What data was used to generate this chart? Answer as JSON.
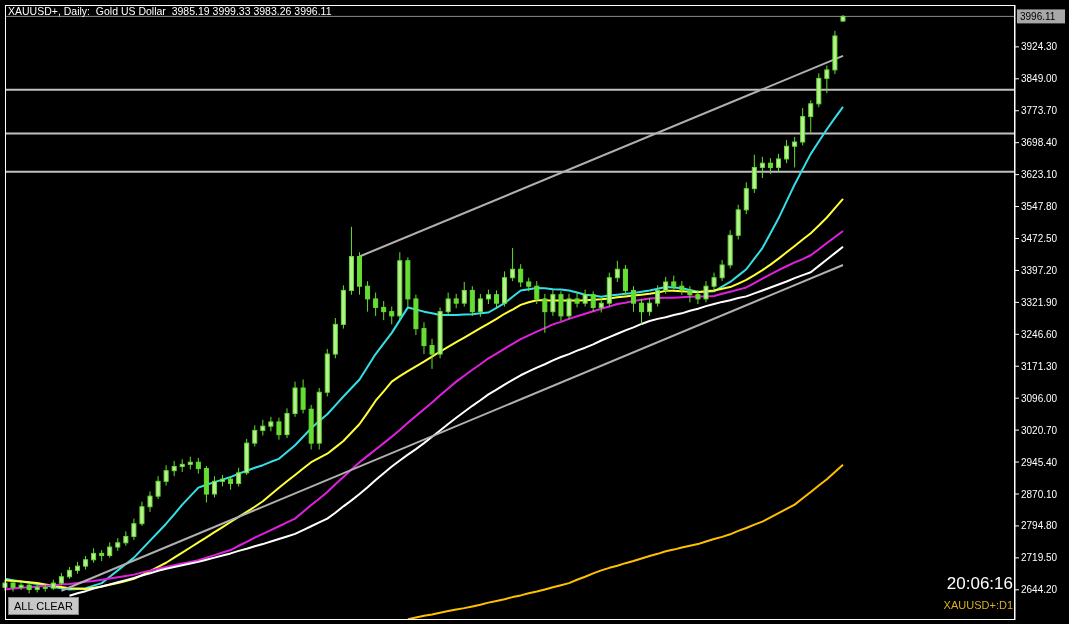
{
  "chart_data": {
    "type": "candlestick",
    "title": "XAUUSD+, Daily:  Gold US Dollar  3985.19 3999.33 3983.26 3996.11",
    "annotations": [
      "20:06:16",
      "XAUUSD+:D1",
      "ALL CLEAR"
    ],
    "color": "#66dd33",
    "categories": [
      null,
      null,
      null,
      null,
      null,
      null,
      null,
      null,
      null,
      null,
      null,
      null,
      null,
      null,
      null,
      null,
      null,
      null,
      null,
      null,
      null,
      null,
      null,
      null,
      null,
      null,
      null,
      null,
      null,
      null,
      null,
      null,
      null,
      null,
      null,
      null,
      null,
      null,
      null,
      null,
      null,
      null,
      null,
      null,
      null,
      null,
      null,
      null,
      null,
      null,
      null,
      null,
      null,
      null,
      null,
      null,
      null,
      null,
      null,
      null,
      null,
      null,
      null,
      null,
      null,
      null,
      null,
      null,
      null,
      null,
      null,
      null,
      null,
      null,
      null,
      null,
      null,
      null,
      null,
      null,
      null,
      null,
      null,
      null,
      null,
      null,
      null,
      null,
      null,
      null,
      null,
      null,
      null,
      null,
      null,
      null,
      null,
      null,
      null,
      null,
      null,
      null,
      null,
      null,
      null
    ],
    "ohlc": [
      [
        2650,
        2668,
        2642,
        2660
      ],
      [
        2660,
        2665,
        2640,
        2650
      ],
      [
        2650,
        2662,
        2644,
        2655
      ],
      [
        2655,
        2660,
        2636,
        2645
      ],
      [
        2645,
        2658,
        2638,
        2650
      ],
      [
        2650,
        2656,
        2640,
        2648
      ],
      [
        2648,
        2668,
        2644,
        2660
      ],
      [
        2660,
        2684,
        2655,
        2675
      ],
      [
        2675,
        2698,
        2670,
        2690
      ],
      [
        2690,
        2710,
        2682,
        2700
      ],
      [
        2700,
        2724,
        2692,
        2715
      ],
      [
        2715,
        2742,
        2708,
        2730
      ],
      [
        2730,
        2738,
        2712,
        2725
      ],
      [
        2725,
        2756,
        2720,
        2745
      ],
      [
        2745,
        2766,
        2736,
        2755
      ],
      [
        2755,
        2782,
        2748,
        2770
      ],
      [
        2770,
        2812,
        2762,
        2800
      ],
      [
        2800,
        2852,
        2795,
        2840
      ],
      [
        2840,
        2876,
        2828,
        2865
      ],
      [
        2865,
        2912,
        2858,
        2900
      ],
      [
        2900,
        2938,
        2890,
        2925
      ],
      [
        2925,
        2948,
        2912,
        2935
      ],
      [
        2935,
        2952,
        2922,
        2940
      ],
      [
        2940,
        2958,
        2928,
        2945
      ],
      [
        2945,
        2955,
        2918,
        2930
      ],
      [
        2930,
        2936,
        2850,
        2870
      ],
      [
        2870,
        2912,
        2862,
        2900
      ],
      [
        2900,
        2915,
        2888,
        2905
      ],
      [
        2905,
        2912,
        2880,
        2895
      ],
      [
        2895,
        2932,
        2888,
        2920
      ],
      [
        2920,
        3000,
        2915,
        2990
      ],
      [
        2990,
        3032,
        2982,
        3020
      ],
      [
        3020,
        3045,
        3008,
        3030
      ],
      [
        3030,
        3052,
        3018,
        3040
      ],
      [
        3040,
        3050,
        2998,
        3010
      ],
      [
        3010,
        3072,
        3002,
        3060
      ],
      [
        3060,
        3135,
        3052,
        3120
      ],
      [
        3120,
        3140,
        3060,
        3070
      ],
      [
        3070,
        3080,
        2975,
        2990
      ],
      [
        2990,
        3120,
        2975,
        3110
      ],
      [
        3110,
        3212,
        3100,
        3200
      ],
      [
        3200,
        3285,
        3190,
        3270
      ],
      [
        3270,
        3362,
        3260,
        3350
      ],
      [
        3350,
        3500,
        3340,
        3430
      ],
      [
        3430,
        3440,
        3340,
        3360
      ],
      [
        3360,
        3372,
        3300,
        3330
      ],
      [
        3330,
        3345,
        3290,
        3310
      ],
      [
        3310,
        3325,
        3280,
        3300
      ],
      [
        3300,
        3312,
        3270,
        3290
      ],
      [
        3290,
        3440,
        3282,
        3420
      ],
      [
        3420,
        3428,
        3310,
        3330
      ],
      [
        3330,
        3340,
        3245,
        3260
      ],
      [
        3260,
        3275,
        3200,
        3220
      ],
      [
        3220,
        3236,
        3165,
        3200
      ],
      [
        3200,
        3310,
        3190,
        3300
      ],
      [
        3300,
        3345,
        3292,
        3330
      ],
      [
        3330,
        3342,
        3308,
        3320
      ],
      [
        3320,
        3370,
        3312,
        3350
      ],
      [
        3350,
        3360,
        3290,
        3300
      ],
      [
        3300,
        3342,
        3288,
        3330
      ],
      [
        3330,
        3352,
        3318,
        3340
      ],
      [
        3340,
        3350,
        3308,
        3320
      ],
      [
        3320,
        3395,
        3312,
        3380
      ],
      [
        3380,
        3450,
        3372,
        3400
      ],
      [
        3400,
        3412,
        3358,
        3370
      ],
      [
        3370,
        3380,
        3348,
        3360
      ],
      [
        3360,
        3372,
        3318,
        3330
      ],
      [
        3330,
        3342,
        3250,
        3300
      ],
      [
        3300,
        3352,
        3290,
        3340
      ],
      [
        3340,
        3348,
        3278,
        3290
      ],
      [
        3290,
        3342,
        3282,
        3330
      ],
      [
        3330,
        3345,
        3310,
        3320
      ],
      [
        3320,
        3352,
        3312,
        3340
      ],
      [
        3340,
        3348,
        3300,
        3310
      ],
      [
        3310,
        3332,
        3298,
        3320
      ],
      [
        3320,
        3392,
        3312,
        3380
      ],
      [
        3380,
        3420,
        3370,
        3400
      ],
      [
        3400,
        3410,
        3340,
        3350
      ],
      [
        3350,
        3360,
        3300,
        3320
      ],
      [
        3320,
        3330,
        3270,
        3300
      ],
      [
        3300,
        3332,
        3290,
        3320
      ],
      [
        3320,
        3362,
        3312,
        3350
      ],
      [
        3350,
        3382,
        3342,
        3370
      ],
      [
        3370,
        3385,
        3352,
        3360
      ],
      [
        3360,
        3372,
        3340,
        3350
      ],
      [
        3350,
        3360,
        3322,
        3340
      ],
      [
        3340,
        3350,
        3318,
        3330
      ],
      [
        3330,
        3372,
        3322,
        3360
      ],
      [
        3360,
        3392,
        3350,
        3380
      ],
      [
        3380,
        3422,
        3372,
        3410
      ],
      [
        3410,
        3492,
        3402,
        3480
      ],
      [
        3480,
        3552,
        3470,
        3540
      ],
      [
        3540,
        3605,
        3530,
        3590
      ],
      [
        3590,
        3670,
        3580,
        3640
      ],
      [
        3640,
        3665,
        3615,
        3650
      ],
      [
        3650,
        3662,
        3625,
        3640
      ],
      [
        3640,
        3672,
        3630,
        3660
      ],
      [
        3660,
        3705,
        3650,
        3690
      ],
      [
        3690,
        3712,
        3640,
        3700
      ],
      [
        3700,
        3780,
        3692,
        3760
      ],
      [
        3760,
        3798,
        3718,
        3790
      ],
      [
        3790,
        3862,
        3782,
        3850
      ],
      [
        3850,
        3880,
        3815,
        3870
      ],
      [
        3870,
        3962,
        3860,
        3950
      ],
      [
        3985.19,
        3999.33,
        3983.26,
        3996.11
      ]
    ],
    "series": [
      {
        "type": "line",
        "color": "#33e0e8",
        "values": [
          2670,
          2667,
          2664,
          2661,
          2658,
          2655,
          2651,
          2648,
          2645,
          2646,
          2648,
          2654,
          2660,
          2675,
          2690,
          2705,
          2720,
          2740,
          2760,
          2780,
          2800,
          2822,
          2845,
          2865,
          2885,
          2892,
          2898,
          2904,
          2910,
          2918,
          2925,
          2932,
          2938,
          2946,
          2953,
          2969,
          2985,
          3005,
          3025,
          3042,
          3058,
          3079,
          3100,
          3120,
          3140,
          3170,
          3200,
          3225,
          3250,
          3280,
          3310,
          3305,
          3300,
          3296,
          3292,
          3292,
          3292,
          3293,
          3294,
          3296,
          3298,
          3309,
          3320,
          3335,
          3350,
          3353,
          3356,
          3355,
          3353,
          3352,
          3350,
          3345,
          3340,
          3338,
          3335,
          3338,
          3340,
          3342,
          3344,
          3347,
          3350,
          3354,
          3358,
          3357,
          3355,
          3351,
          3347,
          3347,
          3348,
          3359,
          3370,
          3385,
          3400,
          3425,
          3450,
          3485,
          3520,
          3560,
          3600,
          3636,
          3672,
          3701,
          3730,
          3757,
          3783
        ]
      },
      {
        "type": "line",
        "color": "#ffff33",
        "values": [
          2667,
          2665,
          2664,
          2662,
          2660,
          2657,
          2654,
          2651,
          2648,
          2647,
          2646,
          2649,
          2652,
          2656,
          2660,
          2665,
          2670,
          2679,
          2688,
          2698,
          2708,
          2720,
          2732,
          2744,
          2756,
          2768,
          2780,
          2792,
          2804,
          2816,
          2828,
          2840,
          2853,
          2869,
          2885,
          2900,
          2915,
          2930,
          2945,
          2955,
          2965,
          2980,
          2995,
          3015,
          3035,
          3062,
          3090,
          3112,
          3135,
          3148,
          3160,
          3171,
          3182,
          3194,
          3206,
          3217,
          3228,
          3239,
          3250,
          3261,
          3272,
          3283,
          3295,
          3305,
          3316,
          3322,
          3327,
          3327,
          3326,
          3326,
          3326,
          3326,
          3327,
          3328,
          3329,
          3331,
          3334,
          3336,
          3338,
          3340,
          3342,
          3345,
          3349,
          3349,
          3348,
          3347,
          3346,
          3348,
          3350,
          3354,
          3358,
          3366,
          3375,
          3386,
          3398,
          3411,
          3425,
          3440,
          3455,
          3470,
          3485,
          3503,
          3522,
          3544,
          3566
        ]
      },
      {
        "type": "line",
        "color": "#e020e0",
        "values": [
          2645,
          2647,
          2649,
          2650,
          2652,
          2654,
          2655,
          2657,
          2658,
          2660,
          2663,
          2665,
          2668,
          2671,
          2674,
          2677,
          2680,
          2685,
          2689,
          2694,
          2698,
          2702,
          2706,
          2710,
          2714,
          2720,
          2726,
          2732,
          2738,
          2748,
          2757,
          2767,
          2776,
          2785,
          2794,
          2803,
          2812,
          2828,
          2844,
          2859,
          2875,
          2893,
          2910,
          2928,
          2945,
          2960,
          2975,
          2990,
          3005,
          3021,
          3038,
          3054,
          3070,
          3086,
          3103,
          3119,
          3135,
          3149,
          3163,
          3176,
          3190,
          3201,
          3213,
          3224,
          3235,
          3244,
          3253,
          3261,
          3270,
          3276,
          3283,
          3289,
          3295,
          3301,
          3307,
          3312,
          3318,
          3321,
          3325,
          3328,
          3331,
          3332,
          3333,
          3333,
          3334,
          3335,
          3336,
          3336,
          3337,
          3342,
          3347,
          3352,
          3357,
          3367,
          3378,
          3388,
          3398,
          3407,
          3416,
          3424,
          3433,
          3447,
          3462,
          3476,
          3490
        ]
      },
      {
        "type": "line",
        "color": "#ffffff",
        "values": [
          null,
          null,
          null,
          null,
          null,
          null,
          null,
          null,
          2630,
          2636,
          2641,
          2647,
          2652,
          2657,
          2662,
          2667,
          2672,
          2678,
          2683,
          2689,
          2694,
          2698,
          2702,
          2706,
          2710,
          2715,
          2720,
          2725,
          2730,
          2736,
          2741,
          2747,
          2752,
          2758,
          2764,
          2770,
          2776,
          2785,
          2794,
          2803,
          2812,
          2826,
          2841,
          2855,
          2870,
          2886,
          2903,
          2919,
          2935,
          2949,
          2963,
          2976,
          2990,
          3005,
          3020,
          3035,
          3050,
          3064,
          3078,
          3091,
          3105,
          3116,
          3128,
          3139,
          3150,
          3159,
          3168,
          3176,
          3185,
          3193,
          3200,
          3208,
          3215,
          3223,
          3232,
          3240,
          3248,
          3256,
          3263,
          3271,
          3278,
          3283,
          3287,
          3292,
          3296,
          3302,
          3307,
          3313,
          3318,
          3323,
          3327,
          3332,
          3336,
          3343,
          3350,
          3357,
          3364,
          3371,
          3379,
          3386,
          3393,
          3408,
          3423,
          3438,
          3453
        ]
      },
      {
        "type": "line",
        "color": "#ffc000",
        "values": [
          null,
          null,
          null,
          null,
          null,
          null,
          null,
          null,
          null,
          null,
          null,
          null,
          null,
          null,
          null,
          null,
          null,
          null,
          null,
          null,
          null,
          null,
          null,
          null,
          null,
          null,
          null,
          null,
          null,
          null,
          null,
          null,
          null,
          null,
          null,
          null,
          null,
          null,
          null,
          null,
          null,
          null,
          null,
          null,
          null,
          null,
          null,
          null,
          null,
          null,
          2575,
          2579,
          2583,
          2586,
          2590,
          2594,
          2598,
          2601,
          2605,
          2609,
          2614,
          2618,
          2622,
          2627,
          2631,
          2636,
          2640,
          2645,
          2650,
          2655,
          2660,
          2668,
          2675,
          2683,
          2690,
          2696,
          2701,
          2707,
          2712,
          2718,
          2724,
          2729,
          2735,
          2739,
          2744,
          2748,
          2752,
          2758,
          2764,
          2769,
          2775,
          2783,
          2790,
          2798,
          2805,
          2815,
          2825,
          2835,
          2845,
          2860,
          2875,
          2890,
          2905,
          2922,
          2939
        ]
      },
      {
        "type": "line",
        "color": "#b0b0b0",
        "values": [
          null,
          null,
          null,
          null,
          null,
          null,
          null,
          null,
          null,
          null,
          null,
          null,
          null,
          null,
          null,
          null,
          null,
          null,
          null,
          null,
          null,
          null,
          null,
          null,
          null,
          null,
          null,
          null,
          null,
          null,
          null,
          null,
          null,
          null,
          null,
          null,
          null,
          null,
          null,
          null,
          null,
          null,
          null,
          null,
          3430,
          null,
          null,
          null,
          null,
          null,
          null,
          null,
          null,
          null,
          null,
          null,
          null,
          null,
          null,
          null,
          null,
          null,
          null,
          null,
          null,
          null,
          null,
          null,
          null,
          null,
          null,
          null,
          null,
          null,
          null,
          null,
          null,
          null,
          null,
          null,
          null,
          null,
          null,
          null,
          null,
          null,
          null,
          null,
          null,
          null,
          null,
          null,
          null,
          null,
          null,
          null,
          null,
          null,
          null,
          null,
          null,
          null,
          null,
          null,
          3903
        ]
      },
      {
        "type": "line",
        "color": "#b0b0b0",
        "values": [
          null,
          null,
          null,
          null,
          null,
          null,
          null,
          2642,
          null,
          null,
          null,
          null,
          null,
          null,
          null,
          null,
          null,
          null,
          null,
          null,
          null,
          null,
          null,
          null,
          null,
          null,
          null,
          null,
          null,
          null,
          null,
          null,
          null,
          null,
          null,
          null,
          null,
          null,
          null,
          null,
          null,
          null,
          null,
          null,
          null,
          null,
          null,
          null,
          null,
          null,
          null,
          null,
          null,
          null,
          null,
          null,
          null,
          null,
          null,
          null,
          null,
          null,
          null,
          null,
          null,
          null,
          null,
          null,
          null,
          null,
          null,
          null,
          null,
          null,
          null,
          null,
          null,
          null,
          null,
          null,
          null,
          null,
          null,
          null,
          null,
          null,
          null,
          null,
          null,
          null,
          null,
          null,
          null,
          null,
          null,
          null,
          null,
          null,
          null,
          null,
          null,
          null,
          null,
          null,
          3410
        ]
      }
    ],
    "ylim": [
      2573,
      4023
    ],
    "yticks": [
      {
        "value": 2644.2,
        "label": "2644.20"
      },
      {
        "value": 2719.5,
        "label": "2719.50"
      },
      {
        "value": 2794.8,
        "label": "2794.80"
      },
      {
        "value": 2870.1,
        "label": "2870.10"
      },
      {
        "value": 2945.4,
        "label": "2945.40"
      },
      {
        "value": 3020.7,
        "label": "3020.70"
      },
      {
        "value": 3096,
        "label": "3096.00"
      },
      {
        "value": 3171.3,
        "label": "3171.30"
      },
      {
        "value": 3246.6,
        "label": "3246.60"
      },
      {
        "value": 3321.9,
        "label": "3321.90"
      },
      {
        "value": 3397.2,
        "label": "3397.20"
      },
      {
        "value": 3472.5,
        "label": "3472.50"
      },
      {
        "value": 3547.8,
        "label": "3547.80"
      },
      {
        "value": 3623.1,
        "label": "3623.10"
      },
      {
        "value": 3698.4,
        "label": "3698.40"
      },
      {
        "value": 3773.7,
        "label": "3773.70"
      },
      {
        "value": 3849,
        "label": "3849.00"
      },
      {
        "value": 3924.3,
        "label": "3924.30"
      }
    ],
    "ref_lines": [
      {
        "axis": "y",
        "value": 3823,
        "color": "#c0c0c0"
      },
      {
        "axis": "y",
        "value": 3720,
        "color": "#c0c0c0"
      },
      {
        "axis": "y",
        "value": 3630,
        "color": "#c0c0c0"
      },
      {
        "axis": "y",
        "value": 3996.11,
        "label": "3996.11",
        "color": "#8a8a8a"
      }
    ]
  }
}
